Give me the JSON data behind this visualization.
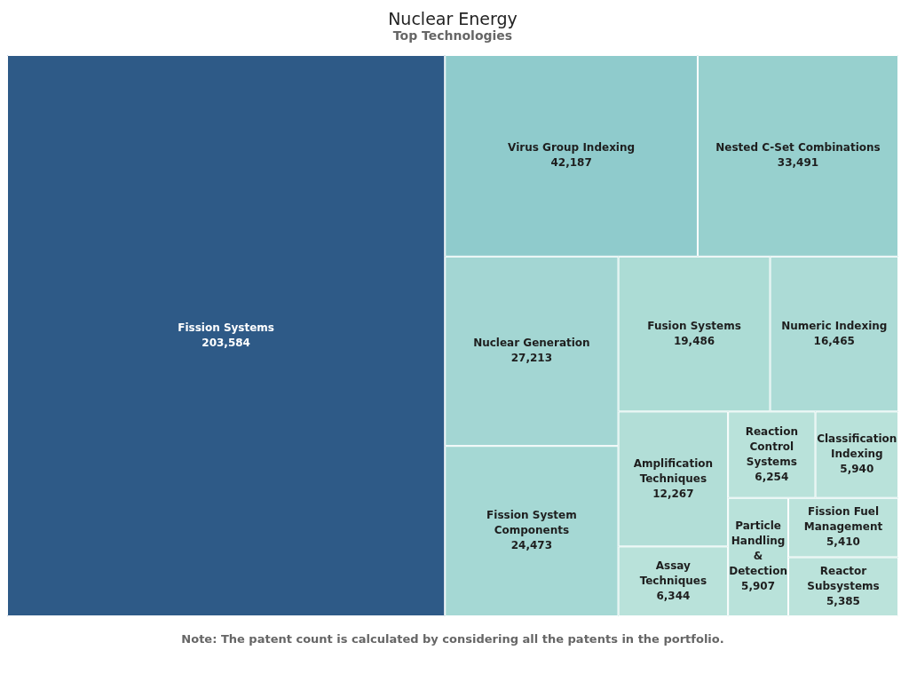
{
  "chart_data": {
    "type": "other",
    "title": "Nuclear Energy",
    "subtitle": "Top Technologies",
    "categories": [
      "Fission Systems",
      "Virus Group Indexing",
      "Nested C-Set Combinations",
      "Nuclear Generation",
      "Fission System Components",
      "Fusion Systems",
      "Numeric Indexing",
      "Amplification Techniques",
      "Assay Techniques",
      "Reaction Control Systems",
      "Classification Indexing",
      "Particle Handling & Detection",
      "Fission Fuel Management",
      "Reactor Subsystems"
    ],
    "values": [
      203584,
      42187,
      33491,
      27213,
      24473,
      19486,
      16465,
      12267,
      6344,
      6254,
      5940,
      5907,
      5410,
      5385
    ],
    "colors": [
      "#2e5a87",
      "#8fcbcc",
      "#97d0ce",
      "#a3d6d3",
      "#a5d8d4",
      "#acdcd5",
      "#acdbd6",
      "#b2ded7",
      "#b9e2da",
      "#b9e2da",
      "#b9e2da",
      "#b9e2da",
      "#bbe3db",
      "#bbe3db"
    ],
    "value_labels": [
      "203,584",
      "42,187",
      "33,491",
      "27,213",
      "24,473",
      "19,486",
      "16,465",
      "12,267",
      "6,344",
      "6,254",
      "5,940",
      "5,907",
      "5,410",
      "5,385"
    ],
    "annotations": [
      "Note: The patent count is calculated by considering all the patents in the portfolio."
    ]
  }
}
